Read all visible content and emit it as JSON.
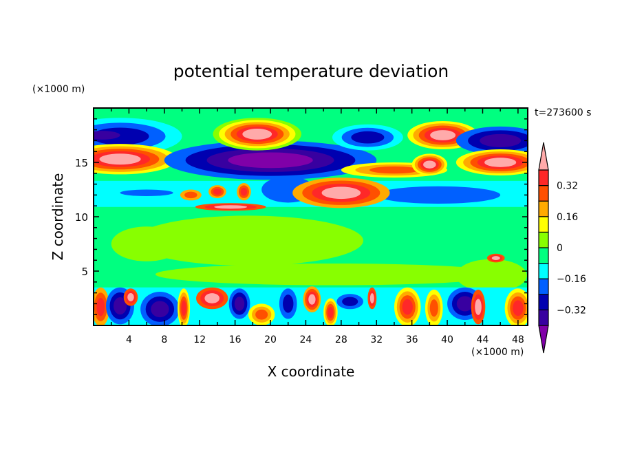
{
  "chart_data": {
    "type": "heatmap",
    "title": "potential temperature deviation",
    "xlabel": "X coordinate",
    "ylabel": "Z coordinate",
    "x_unit": "(×1000 m)",
    "y_unit": "(×1000 m)",
    "time_label": "t=273600 s",
    "xlim": [
      0,
      49.1
    ],
    "ylim": [
      0,
      20
    ],
    "x_ticks": [
      4,
      8,
      12,
      16,
      20,
      24,
      28,
      32,
      36,
      40,
      44,
      48
    ],
    "x_minor_step": 2,
    "y_ticks": [
      5,
      10,
      15
    ],
    "y_minor_step": 1,
    "grid": false,
    "colorbar": {
      "levels": [
        -0.4,
        -0.32,
        -0.24,
        -0.16,
        -0.08,
        0,
        0.08,
        0.16,
        0.24,
        0.32,
        0.4
      ],
      "tick_labels": [
        {
          "value": 0.32,
          "label": "0.32"
        },
        {
          "value": 0.16,
          "label": "0.16"
        },
        {
          "value": 0,
          "label": "0"
        },
        {
          "value": -0.16,
          "label": "−0.16"
        },
        {
          "value": -0.32,
          "label": "−0.32"
        }
      ],
      "colors": [
        "#8000a8",
        "#3800a0",
        "#0000b0",
        "#0060ff",
        "#00ffff",
        "#00ff80",
        "#88ff00",
        "#ffff00",
        "#ffaa00",
        "#ff5000",
        "#ff2828",
        "#ffaaaa"
      ],
      "extend": "both"
    },
    "background_level": 5,
    "regions": [
      [
        "r",
        0,
        10.9,
        49.1,
        13.3,
        4,
        4
      ],
      [
        "e",
        3,
        17.4,
        7,
        1.7,
        4,
        2
      ],
      [
        "e",
        1,
        17.5,
        2,
        0.4,
        1,
        1
      ],
      [
        "e",
        3,
        15.3,
        6.5,
        1.4,
        7,
        11
      ],
      [
        "e",
        20,
        15.2,
        12,
        1.8,
        3,
        0
      ],
      [
        "e",
        18.5,
        17.6,
        5,
        1.5,
        6,
        11
      ],
      [
        "e",
        31,
        17.3,
        4,
        1.2,
        4,
        2
      ],
      [
        "e",
        39.5,
        17.5,
        4,
        1.3,
        7,
        11
      ],
      [
        "e",
        46,
        17,
        5,
        1.3,
        3,
        1
      ],
      [
        "e",
        34,
        14.3,
        6,
        0.7,
        7,
        9
      ],
      [
        "e",
        46,
        15,
        5,
        1.2,
        7,
        11
      ],
      [
        "e",
        38,
        14.8,
        2,
        1,
        7,
        11
      ],
      [
        "e",
        39,
        12,
        7,
        0.8,
        3,
        3
      ],
      [
        "e",
        6,
        12.2,
        3,
        0.3,
        3,
        3
      ],
      [
        "e",
        22,
        12.5,
        3,
        1.2,
        3,
        3
      ],
      [
        "e",
        28,
        12.2,
        5.5,
        1.4,
        8,
        11
      ],
      [
        "e",
        14,
        12.3,
        1,
        0.6,
        8,
        10
      ],
      [
        "e",
        17,
        12.3,
        0.8,
        0.8,
        8,
        10
      ],
      [
        "e",
        11,
        12,
        1.2,
        0.5,
        8,
        9
      ],
      [
        "e",
        15.5,
        10.9,
        4,
        0.35,
        9,
        11
      ],
      [
        "e",
        17.5,
        7.8,
        13,
        2.3,
        6,
        6
      ],
      [
        "e",
        6,
        7.5,
        4,
        1.6,
        6,
        6
      ],
      [
        "e",
        27,
        4.7,
        20,
        1.0,
        6,
        6
      ],
      [
        "e",
        45,
        4.6,
        4,
        1.5,
        6,
        6
      ],
      [
        "e",
        45.5,
        6.2,
        1,
        0.4,
        9,
        11
      ],
      [
        "r",
        0,
        0,
        49.1,
        3.5,
        4,
        4
      ],
      [
        "e",
        0.8,
        1.7,
        1,
        1.8,
        8,
        10
      ],
      [
        "e",
        3,
        1.8,
        1.6,
        1.7,
        3,
        1
      ],
      [
        "e",
        7.5,
        1.5,
        2.2,
        1.6,
        3,
        1
      ],
      [
        "e",
        4.2,
        2.6,
        0.8,
        0.8,
        9,
        11
      ],
      [
        "e",
        10.2,
        1.6,
        0.7,
        1.8,
        7,
        10
      ],
      [
        "e",
        13.4,
        2.5,
        1.8,
        1,
        9,
        11
      ],
      [
        "e",
        16.5,
        2,
        1.2,
        1.4,
        3,
        1
      ],
      [
        "e",
        19,
        1,
        1.5,
        1,
        7,
        9
      ],
      [
        "e",
        22,
        2,
        1,
        1.4,
        3,
        2
      ],
      [
        "e",
        24.7,
        2.4,
        1,
        1.2,
        8,
        11
      ],
      [
        "e",
        26.8,
        1.2,
        0.8,
        1.3,
        7,
        10
      ],
      [
        "e",
        29,
        2.2,
        1.5,
        0.7,
        3,
        2
      ],
      [
        "e",
        31.5,
        2.5,
        0.5,
        1,
        9,
        11
      ],
      [
        "e",
        35.5,
        1.7,
        1.5,
        1.8,
        7,
        10
      ],
      [
        "e",
        38.5,
        1.6,
        1,
        1.7,
        7,
        9
      ],
      [
        "e",
        42,
        2,
        2,
        1.5,
        3,
        1
      ],
      [
        "e",
        43.5,
        1.7,
        0.8,
        1.6,
        9,
        11
      ],
      [
        "e",
        48,
        1.6,
        1.5,
        1.8,
        7,
        10
      ]
    ]
  }
}
